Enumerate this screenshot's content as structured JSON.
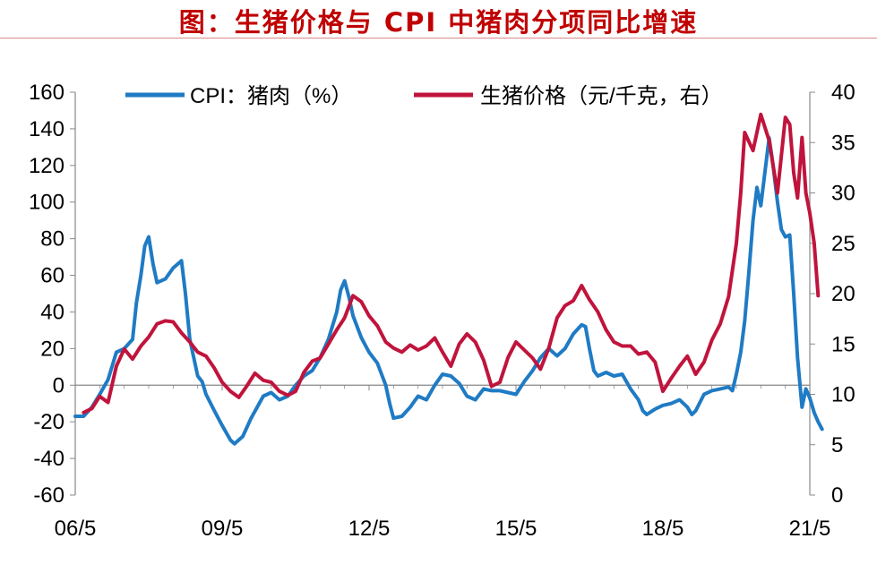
{
  "colors": {
    "title": "#c00000",
    "cpi": "#1f7bc4",
    "hog": "#c0143c",
    "axis": "#888888"
  },
  "chart_data": {
    "type": "line",
    "title": "图：生猪价格与 CPI 中猪肉分项同比增速",
    "x_labels": [
      "06/5",
      "09/5",
      "12/5",
      "15/5",
      "18/5",
      "21/5"
    ],
    "x_range": [
      2006.33,
      2021.33
    ],
    "y_left": {
      "lim": [
        -60,
        160
      ],
      "ticks": [
        160,
        140,
        120,
        100,
        80,
        60,
        40,
        20,
        0,
        -20,
        -40,
        -60
      ]
    },
    "y_right": {
      "lim": [
        0,
        40
      ],
      "ticks": [
        40,
        35,
        30,
        25,
        20,
        15,
        10,
        5,
        0
      ]
    },
    "legend": [
      "CPI：猪肉（%）",
      "生猪价格（元/千克，右）"
    ],
    "series": [
      {
        "name": "CPI：猪肉（%）",
        "axis": "left",
        "points": [
          [
            2006.33,
            -17
          ],
          [
            2006.5,
            -17
          ],
          [
            2006.67,
            -12
          ],
          [
            2006.83,
            -5
          ],
          [
            2007.0,
            3
          ],
          [
            2007.17,
            18
          ],
          [
            2007.33,
            20
          ],
          [
            2007.5,
            25
          ],
          [
            2007.58,
            45
          ],
          [
            2007.67,
            60
          ],
          [
            2007.75,
            76
          ],
          [
            2007.83,
            81
          ],
          [
            2007.92,
            66
          ],
          [
            2008.0,
            56
          ],
          [
            2008.17,
            58
          ],
          [
            2008.33,
            64
          ],
          [
            2008.5,
            68
          ],
          [
            2008.58,
            50
          ],
          [
            2008.67,
            25
          ],
          [
            2008.83,
            5
          ],
          [
            2008.92,
            2
          ],
          [
            2009.0,
            -5
          ],
          [
            2009.17,
            -14
          ],
          [
            2009.33,
            -22
          ],
          [
            2009.5,
            -30
          ],
          [
            2009.58,
            -32
          ],
          [
            2009.75,
            -28
          ],
          [
            2009.92,
            -18
          ],
          [
            2010.17,
            -6
          ],
          [
            2010.33,
            -4
          ],
          [
            2010.5,
            -8
          ],
          [
            2010.67,
            -6
          ],
          [
            2010.83,
            0
          ],
          [
            2011.0,
            5
          ],
          [
            2011.17,
            8
          ],
          [
            2011.33,
            15
          ],
          [
            2011.5,
            25
          ],
          [
            2011.67,
            40
          ],
          [
            2011.75,
            52
          ],
          [
            2011.83,
            57
          ],
          [
            2011.92,
            48
          ],
          [
            2012.0,
            38
          ],
          [
            2012.17,
            26
          ],
          [
            2012.33,
            18
          ],
          [
            2012.5,
            12
          ],
          [
            2012.67,
            0
          ],
          [
            2012.75,
            -10
          ],
          [
            2012.83,
            -18
          ],
          [
            2013.0,
            -17
          ],
          [
            2013.17,
            -12
          ],
          [
            2013.33,
            -6
          ],
          [
            2013.5,
            -8
          ],
          [
            2013.67,
            0
          ],
          [
            2013.83,
            6
          ],
          [
            2014.0,
            5
          ],
          [
            2014.17,
            1
          ],
          [
            2014.33,
            -6
          ],
          [
            2014.5,
            -8
          ],
          [
            2014.67,
            -2
          ],
          [
            2014.83,
            -3
          ],
          [
            2015.0,
            -3
          ],
          [
            2015.17,
            -4
          ],
          [
            2015.33,
            -5
          ],
          [
            2015.5,
            2
          ],
          [
            2015.67,
            8
          ],
          [
            2015.83,
            15
          ],
          [
            2016.0,
            20
          ],
          [
            2016.17,
            16
          ],
          [
            2016.33,
            20
          ],
          [
            2016.5,
            28
          ],
          [
            2016.67,
            33
          ],
          [
            2016.75,
            32
          ],
          [
            2016.83,
            20
          ],
          [
            2016.92,
            8
          ],
          [
            2017.0,
            5
          ],
          [
            2017.17,
            7
          ],
          [
            2017.33,
            5
          ],
          [
            2017.5,
            6
          ],
          [
            2017.67,
            -2
          ],
          [
            2017.83,
            -8
          ],
          [
            2017.92,
            -14
          ],
          [
            2018.0,
            -16
          ],
          [
            2018.17,
            -13
          ],
          [
            2018.33,
            -11
          ],
          [
            2018.5,
            -10
          ],
          [
            2018.67,
            -8
          ],
          [
            2018.83,
            -12
          ],
          [
            2018.92,
            -16
          ],
          [
            2019.0,
            -14
          ],
          [
            2019.17,
            -5
          ],
          [
            2019.33,
            -3
          ],
          [
            2019.5,
            -2
          ],
          [
            2019.67,
            -1
          ],
          [
            2019.75,
            -3
          ],
          [
            2019.83,
            6
          ],
          [
            2019.92,
            18
          ],
          [
            2020.0,
            35
          ],
          [
            2020.08,
            60
          ],
          [
            2020.17,
            90
          ],
          [
            2020.25,
            108
          ],
          [
            2020.33,
            98
          ],
          [
            2020.42,
            118
          ],
          [
            2020.5,
            135
          ],
          [
            2020.58,
            120
          ],
          [
            2020.67,
            100
          ],
          [
            2020.75,
            85
          ],
          [
            2020.83,
            81
          ],
          [
            2020.92,
            82
          ],
          [
            2021.0,
            50
          ],
          [
            2021.08,
            15
          ],
          [
            2021.17,
            -12
          ],
          [
            2021.25,
            -2
          ],
          [
            2021.33,
            -7
          ],
          [
            2021.42,
            -15
          ],
          [
            2021.5,
            -20
          ],
          [
            2021.58,
            -24
          ]
        ]
      },
      {
        "name": "生猪价格（元/千克，右）",
        "axis": "right",
        "points": [
          [
            2006.5,
            8.2
          ],
          [
            2006.67,
            8.6
          ],
          [
            2006.83,
            9.8
          ],
          [
            2007.0,
            9.2
          ],
          [
            2007.17,
            12.8
          ],
          [
            2007.33,
            14.5
          ],
          [
            2007.5,
            13.5
          ],
          [
            2007.67,
            14.8
          ],
          [
            2007.83,
            15.7
          ],
          [
            2008.0,
            17.0
          ],
          [
            2008.17,
            17.3
          ],
          [
            2008.33,
            17.2
          ],
          [
            2008.5,
            16.1
          ],
          [
            2008.67,
            15.2
          ],
          [
            2008.83,
            14.2
          ],
          [
            2009.0,
            13.8
          ],
          [
            2009.17,
            12.6
          ],
          [
            2009.33,
            11.2
          ],
          [
            2009.5,
            10.3
          ],
          [
            2009.67,
            9.7
          ],
          [
            2009.83,
            10.8
          ],
          [
            2010.0,
            12.1
          ],
          [
            2010.17,
            11.4
          ],
          [
            2010.33,
            11.2
          ],
          [
            2010.5,
            10.3
          ],
          [
            2010.67,
            9.9
          ],
          [
            2010.83,
            10.3
          ],
          [
            2011.0,
            12.2
          ],
          [
            2011.17,
            13.3
          ],
          [
            2011.33,
            13.6
          ],
          [
            2011.5,
            15.0
          ],
          [
            2011.67,
            16.4
          ],
          [
            2011.83,
            17.6
          ],
          [
            2012.0,
            19.8
          ],
          [
            2012.17,
            19.2
          ],
          [
            2012.33,
            17.8
          ],
          [
            2012.5,
            16.8
          ],
          [
            2012.67,
            15.2
          ],
          [
            2012.83,
            14.6
          ],
          [
            2013.0,
            14.2
          ],
          [
            2013.17,
            14.9
          ],
          [
            2013.33,
            14.4
          ],
          [
            2013.5,
            14.8
          ],
          [
            2013.67,
            15.6
          ],
          [
            2013.83,
            14.2
          ],
          [
            2014.0,
            12.8
          ],
          [
            2014.17,
            15.0
          ],
          [
            2014.33,
            16.0
          ],
          [
            2014.5,
            15.2
          ],
          [
            2014.67,
            13.4
          ],
          [
            2014.83,
            10.8
          ],
          [
            2015.0,
            11.2
          ],
          [
            2015.17,
            13.7
          ],
          [
            2015.33,
            15.2
          ],
          [
            2015.5,
            14.4
          ],
          [
            2015.67,
            13.6
          ],
          [
            2015.83,
            12.5
          ],
          [
            2016.0,
            14.6
          ],
          [
            2016.17,
            17.6
          ],
          [
            2016.33,
            18.8
          ],
          [
            2016.5,
            19.3
          ],
          [
            2016.67,
            20.8
          ],
          [
            2016.83,
            19.4
          ],
          [
            2017.0,
            18.2
          ],
          [
            2017.17,
            16.4
          ],
          [
            2017.33,
            15.2
          ],
          [
            2017.5,
            14.8
          ],
          [
            2017.67,
            14.8
          ],
          [
            2017.83,
            14.0
          ],
          [
            2018.0,
            14.2
          ],
          [
            2018.17,
            13.2
          ],
          [
            2018.33,
            10.3
          ],
          [
            2018.5,
            11.6
          ],
          [
            2018.67,
            12.8
          ],
          [
            2018.83,
            13.8
          ],
          [
            2019.0,
            12.0
          ],
          [
            2019.17,
            13.2
          ],
          [
            2019.33,
            15.4
          ],
          [
            2019.5,
            17.0
          ],
          [
            2019.67,
            19.7
          ],
          [
            2019.83,
            25.0
          ],
          [
            2019.92,
            30.0
          ],
          [
            2020.0,
            36.0
          ],
          [
            2020.17,
            34.2
          ],
          [
            2020.33,
            37.8
          ],
          [
            2020.5,
            35.2
          ],
          [
            2020.67,
            30.0
          ],
          [
            2020.83,
            37.5
          ],
          [
            2020.92,
            36.8
          ],
          [
            2021.0,
            32.0
          ],
          [
            2021.08,
            29.5
          ],
          [
            2021.17,
            35.5
          ],
          [
            2021.25,
            30.0
          ],
          [
            2021.33,
            28.0
          ],
          [
            2021.42,
            25.0
          ],
          [
            2021.5,
            19.8
          ]
        ]
      }
    ]
  }
}
